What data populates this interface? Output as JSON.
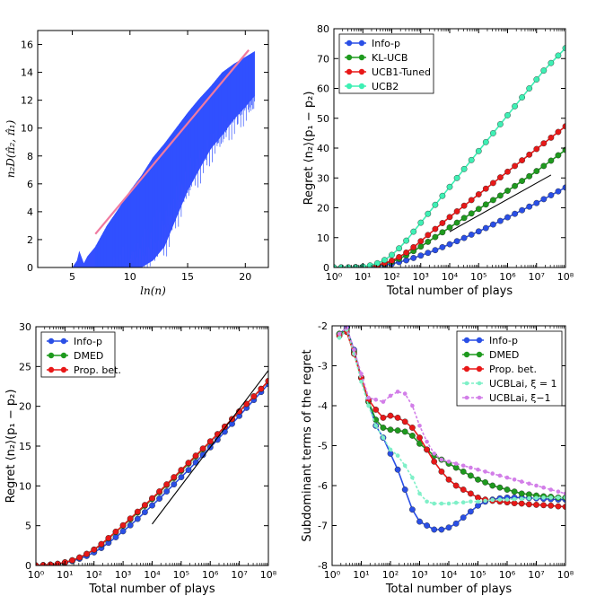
{
  "chart_data": [
    {
      "type": "line",
      "panel": "top-left",
      "xlabel": "ln(n)",
      "ylabel": "n₂D(π̂₂, π̂₁)",
      "xlim": [
        2,
        22
      ],
      "ylim": [
        0,
        17
      ],
      "xticks": [
        5,
        10,
        15,
        20
      ],
      "yticks": [
        0,
        2,
        4,
        6,
        8,
        10,
        12,
        14,
        16
      ],
      "series": [
        {
          "role": "reference line",
          "color": "#f07aa0",
          "x": [
            7,
            20.3
          ],
          "y": [
            2.4,
            15.6
          ]
        },
        {
          "role": "upper envelope",
          "color": "#1f3cff",
          "x": [
            2.0,
            5.0,
            5.4,
            5.6,
            6.0,
            6.3,
            7.0,
            8.0,
            9.0,
            10.0,
            11.0,
            12.0,
            13.0,
            14.0,
            15.0,
            16.0,
            17.0,
            18.0,
            19.0,
            20.0,
            20.8
          ],
          "y": [
            0.0,
            0.0,
            0.5,
            1.2,
            0.3,
            0.8,
            1.5,
            3.0,
            4.2,
            5.5,
            6.6,
            7.9,
            8.9,
            10.0,
            11.1,
            12.1,
            13.0,
            14.0,
            14.6,
            15.1,
            15.5
          ]
        },
        {
          "role": "lower envelope",
          "color": "#1f3cff",
          "x": [
            2.0,
            5.0,
            6.0,
            7.0,
            8.0,
            9.0,
            10.0,
            11.0,
            12.0,
            13.0,
            14.0,
            15.0,
            16.0,
            17.0,
            18.0,
            19.0,
            20.0,
            20.8
          ],
          "y": [
            0.0,
            0.0,
            0.0,
            0.0,
            0.0,
            0.0,
            0.0,
            0.0,
            0.5,
            1.5,
            3.5,
            5.5,
            7.0,
            8.5,
            9.5,
            10.6,
            11.5,
            12.3
          ]
        }
      ]
    },
    {
      "type": "line",
      "panel": "top-right",
      "xlabel": "Total number of plays",
      "ylabel": "Regret ⟨n₂⟩(p₁ − p₂)",
      "xscale": "log",
      "xlim": [
        1,
        100000000
      ],
      "ylim": [
        0,
        80
      ],
      "xticks": [
        "10⁰",
        "10¹",
        "10²",
        "10³",
        "10⁴",
        "10⁵",
        "10⁶",
        "10⁷",
        "10⁸"
      ],
      "yticks": [
        0,
        10,
        20,
        30,
        40,
        50,
        60,
        70,
        80
      ],
      "legend_position": "top-left",
      "x": [
        1.0,
        1.78,
        3.16,
        5.62,
        10.0,
        17.8,
        31.6,
        56.2,
        100.0,
        178.0,
        316.0,
        562.0,
        1000.0,
        1780.0,
        3160.0,
        5620.0,
        10000.0,
        17800.0,
        31600.0,
        56200.0,
        100000.0,
        178000.0,
        316000.0,
        562000.0,
        1000000.0,
        1780000.0,
        3160000.0,
        5620000.0,
        10000000.0,
        17800000.0,
        31600000.0,
        56200000.0,
        100000000.0
      ],
      "series": [
        {
          "name": "Info-p",
          "color": "#2a4fe6",
          "values": [
            0.0,
            0.0,
            0.0,
            0.1,
            0.2,
            0.3,
            0.5,
            0.8,
            1.2,
            1.8,
            2.4,
            3.2,
            4.0,
            4.9,
            5.8,
            6.8,
            7.8,
            8.8,
            9.9,
            11.0,
            12.1,
            13.2,
            14.4,
            15.6,
            16.8,
            18.0,
            19.2,
            20.4,
            21.6,
            22.9,
            24.2,
            25.5,
            26.8
          ]
        },
        {
          "name": "KL-UCB",
          "color": "#1e9a1e",
          "values": [
            0.0,
            0.0,
            0.0,
            0.1,
            0.2,
            0.4,
            0.7,
            1.2,
            1.9,
            2.9,
            4.1,
            5.5,
            7.0,
            8.6,
            10.2,
            11.8,
            13.4,
            15.0,
            16.6,
            18.1,
            19.6,
            21.1,
            22.6,
            24.1,
            25.7,
            27.3,
            29.0,
            30.6,
            32.3,
            34.0,
            35.8,
            37.6,
            39.4
          ]
        },
        {
          "name": "UCB1-Tuned",
          "color": "#e81818",
          "values": [
            0.0,
            0.0,
            0.0,
            0.1,
            0.2,
            0.4,
            0.8,
            1.4,
            2.3,
            3.5,
            5.0,
            6.8,
            8.8,
            10.9,
            12.9,
            14.9,
            16.9,
            18.8,
            20.7,
            22.6,
            24.5,
            26.4,
            28.3,
            30.2,
            32.1,
            34.0,
            35.9,
            37.8,
            39.7,
            41.6,
            43.5,
            45.4,
            47.3
          ]
        },
        {
          "name": "UCB2",
          "color": "#3ef0b4",
          "values": [
            0.0,
            0.0,
            0.0,
            0.1,
            0.3,
            0.7,
            1.4,
            2.5,
            4.2,
            6.4,
            9.0,
            12.0,
            15.0,
            18.0,
            21.0,
            24.0,
            27.0,
            30.0,
            33.0,
            36.0,
            39.0,
            42.0,
            45.0,
            48.0,
            51.0,
            54.0,
            57.0,
            60.0,
            63.0,
            66.0,
            68.5,
            71.0,
            73.5
          ]
        },
        {
          "role": "reference line",
          "color": "#000000",
          "x": [
            10000.0,
            31600000.0
          ],
          "values": [
            12.0,
            31.0
          ]
        }
      ]
    },
    {
      "type": "line",
      "panel": "bottom-left",
      "xlabel": "Total number of plays",
      "ylabel": "Regret ⟨n₂⟩(p₁ − p₂)",
      "xscale": "log",
      "xlim": [
        1,
        100000000
      ],
      "ylim": [
        0,
        30
      ],
      "xticks": [
        "10⁰",
        "10¹",
        "10²",
        "10³",
        "10⁴",
        "10⁵",
        "10⁶",
        "10⁷",
        "10⁸"
      ],
      "yticks": [
        0,
        5,
        10,
        15,
        20,
        25,
        30
      ],
      "legend_position": "top-left",
      "x": [
        1.0,
        1.78,
        3.16,
        5.62,
        10.0,
        17.8,
        31.6,
        56.2,
        100.0,
        178.0,
        316.0,
        562.0,
        1000.0,
        1780.0,
        3160.0,
        5620.0,
        10000.0,
        17800.0,
        31600.0,
        56200.0,
        100000.0,
        178000.0,
        316000.0,
        562000.0,
        1000000.0,
        1780000.0,
        3160000.0,
        5620000.0,
        10000000.0,
        17800000.0,
        31600000.0,
        56200000.0,
        100000000.0
      ],
      "series": [
        {
          "name": "Info-p",
          "color": "#2a4fe6",
          "values": [
            0.0,
            0.05,
            0.1,
            0.2,
            0.35,
            0.55,
            0.85,
            1.2,
            1.65,
            2.2,
            2.85,
            3.55,
            4.3,
            5.05,
            5.85,
            6.7,
            7.55,
            8.4,
            9.3,
            10.2,
            11.1,
            12.0,
            12.95,
            13.9,
            14.85,
            15.8,
            16.8,
            17.8,
            18.8,
            19.8,
            20.8,
            21.8,
            22.8
          ]
        },
        {
          "name": "DMED",
          "color": "#1e9a1e",
          "values": [
            0.0,
            0.05,
            0.1,
            0.2,
            0.4,
            0.65,
            1.0,
            1.45,
            2.0,
            2.65,
            3.4,
            4.2,
            5.0,
            5.8,
            6.65,
            7.5,
            8.35,
            9.2,
            10.1,
            11.0,
            11.9,
            12.8,
            13.7,
            14.6,
            15.55,
            16.5,
            17.45,
            18.4,
            19.35,
            20.3,
            21.25,
            22.2,
            23.15
          ]
        },
        {
          "name": "Prop. bet.",
          "color": "#e81818",
          "values": [
            0.0,
            0.05,
            0.1,
            0.2,
            0.4,
            0.65,
            1.0,
            1.45,
            2.0,
            2.7,
            3.45,
            4.25,
            5.05,
            5.9,
            6.75,
            7.6,
            8.45,
            9.3,
            10.2,
            11.1,
            12.0,
            12.9,
            13.8,
            14.7,
            15.6,
            16.5,
            17.45,
            18.4,
            19.35,
            20.3,
            21.25,
            22.2,
            23.2
          ]
        },
        {
          "role": "reference line",
          "color": "#000000",
          "x": [
            10000.0,
            100000000.0
          ],
          "values": [
            5.2,
            24.5
          ]
        }
      ]
    },
    {
      "type": "line",
      "panel": "bottom-right",
      "xlabel": "Total number of plays",
      "ylabel": "Subdominant terms of the regret",
      "xscale": "log",
      "xlim": [
        1,
        100000000
      ],
      "ylim": [
        -8,
        -2
      ],
      "xticks": [
        "10⁰",
        "10¹",
        "10²",
        "10³",
        "10⁴",
        "10⁵",
        "10⁶",
        "10⁷",
        "10⁸"
      ],
      "yticks": [
        -8,
        -7,
        -6,
        -5,
        -4,
        -3,
        -2
      ],
      "legend_position": "top-right",
      "x": [
        1.78,
        3.16,
        5.62,
        10.0,
        17.8,
        31.6,
        56.2,
        100.0,
        178.0,
        316.0,
        562.0,
        1000.0,
        1780.0,
        3160.0,
        5620.0,
        10000.0,
        17800.0,
        31600.0,
        56200.0,
        100000.0,
        178000.0,
        316000.0,
        562000.0,
        1000000.0,
        1780000.0,
        3160000.0,
        5620000.0,
        10000000.0,
        17800000.0,
        31600000.0,
        56200000.0,
        100000000.0
      ],
      "series": [
        {
          "name": "Info-p",
          "color": "#2a4fe6",
          "values": [
            -2.2,
            -2.05,
            -2.6,
            -3.3,
            -3.9,
            -4.5,
            -4.8,
            -5.2,
            -5.6,
            -6.1,
            -6.6,
            -6.9,
            -7.0,
            -7.1,
            -7.1,
            -7.05,
            -6.95,
            -6.8,
            -6.65,
            -6.5,
            -6.4,
            -6.35,
            -6.32,
            -6.3,
            -6.3,
            -6.3,
            -6.31,
            -6.32,
            -6.33,
            -6.34,
            -6.35,
            -6.35
          ]
        },
        {
          "name": "DMED",
          "color": "#1e9a1e",
          "values": [
            -2.2,
            -2.1,
            -2.65,
            -3.3,
            -3.9,
            -4.35,
            -4.55,
            -4.6,
            -4.62,
            -4.65,
            -4.75,
            -4.95,
            -5.1,
            -5.25,
            -5.35,
            -5.45,
            -5.55,
            -5.65,
            -5.75,
            -5.85,
            -5.92,
            -6.0,
            -6.05,
            -6.1,
            -6.15,
            -6.2,
            -6.22,
            -6.25,
            -6.27,
            -6.28,
            -6.3,
            -6.3
          ]
        },
        {
          "name": "Prop. bet.",
          "color": "#e81818",
          "values": [
            -2.25,
            -2.15,
            -2.7,
            -3.3,
            -3.85,
            -4.1,
            -4.3,
            -4.25,
            -4.3,
            -4.4,
            -4.55,
            -4.8,
            -5.1,
            -5.4,
            -5.65,
            -5.85,
            -6.0,
            -6.1,
            -6.2,
            -6.3,
            -6.35,
            -6.38,
            -6.4,
            -6.42,
            -6.44,
            -6.45,
            -6.47,
            -6.48,
            -6.49,
            -6.5,
            -6.52,
            -6.53
          ]
        },
        {
          "name": "UCBLai, ξ = 1",
          "color": "#7ff0c8",
          "dashed": true,
          "values": [
            -2.3,
            -2.1,
            -2.7,
            -3.4,
            -4.0,
            -4.5,
            -4.8,
            -5.1,
            -5.25,
            -5.5,
            -5.8,
            -6.2,
            -6.4,
            -6.45,
            -6.45,
            -6.45,
            -6.43,
            -6.42,
            -6.4,
            -6.4,
            -6.38,
            -6.36,
            -6.35,
            -6.35,
            -6.34,
            -6.33,
            -6.32,
            -6.31,
            -6.3,
            -6.3,
            -6.3,
            -6.3
          ]
        },
        {
          "name": "UCBLai, ξ−1",
          "color": "#d27ee8",
          "dashed": true,
          "values": [
            -2.2,
            -2.05,
            -2.6,
            -3.2,
            -3.8,
            -3.85,
            -3.9,
            -3.75,
            -3.65,
            -3.7,
            -4.0,
            -4.5,
            -4.9,
            -5.2,
            -5.35,
            -5.4,
            -5.45,
            -5.5,
            -5.55,
            -5.6,
            -5.65,
            -5.7,
            -5.75,
            -5.8,
            -5.85,
            -5.9,
            -5.95,
            -6.0,
            -6.05,
            -6.1,
            -6.15,
            -6.2
          ]
        }
      ]
    }
  ]
}
